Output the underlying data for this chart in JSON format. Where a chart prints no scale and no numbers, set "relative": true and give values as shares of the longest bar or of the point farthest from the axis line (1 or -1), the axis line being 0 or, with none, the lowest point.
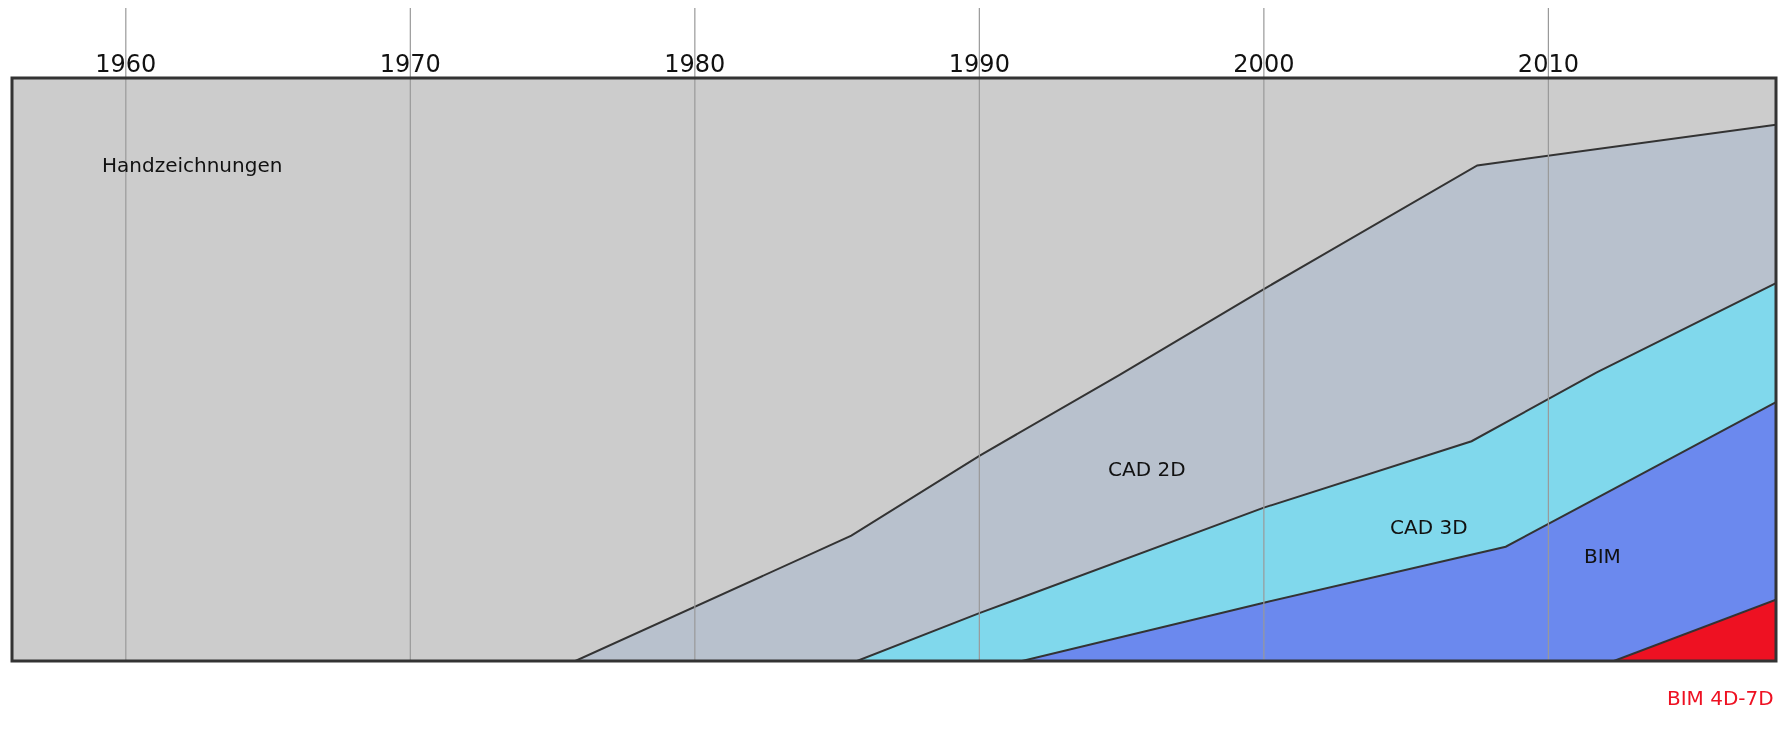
{
  "chart_data": {
    "type": "area",
    "relative": true,
    "xlim": [
      1956,
      2018
    ],
    "xticks": [
      1960,
      1970,
      1980,
      1990,
      2000,
      2010
    ],
    "grid": "x",
    "legend": false,
    "series": [
      {
        "name": "Handzeichnungen",
        "color": "#cccccc",
        "x": [
          1956,
          2018
        ],
        "values": [
          1,
          1
        ]
      },
      {
        "name": "CAD 2D",
        "color": "#b8c1cd",
        "x": [
          1975.8,
          1985.5,
          1990,
          1994.9,
          2000,
          2007.5,
          2018
        ],
        "values": [
          0,
          0.215,
          0.352,
          0.49,
          0.638,
          0.85,
          0.92
        ]
      },
      {
        "name": "CAD 3D",
        "color": "#80d8ec",
        "x": [
          1985.7,
          1990,
          2000,
          2007.3,
          2011.7,
          2018
        ],
        "values": [
          0,
          0.082,
          0.263,
          0.377,
          0.495,
          0.648
        ]
      },
      {
        "name": "BIM",
        "color": "#6b89ee",
        "x": [
          1991.5,
          2000,
          2008.5,
          2018
        ],
        "values": [
          0,
          0.1,
          0.196,
          0.444
        ]
      },
      {
        "name": "BIM 4D-7D",
        "color": "#ee1122",
        "x": [
          2012.3,
          2018
        ],
        "values": [
          0,
          0.105
        ]
      }
    ]
  }
}
